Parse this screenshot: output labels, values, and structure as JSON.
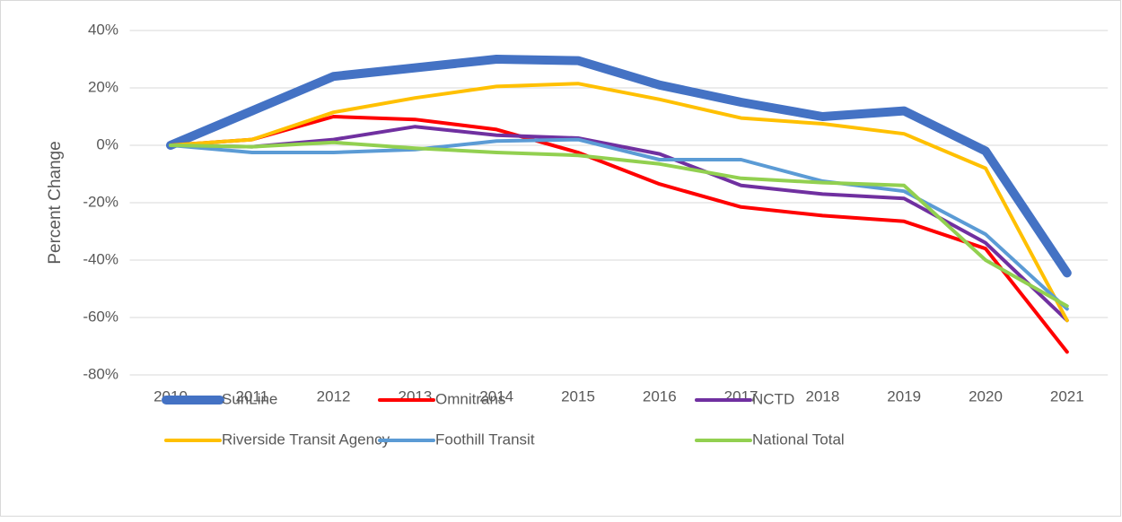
{
  "chart_data": {
    "type": "line",
    "y_label": "Percent Change",
    "categories": [
      "2010",
      "2011",
      "2012",
      "2013",
      "2014",
      "2015",
      "2016",
      "2017",
      "2018",
      "2019",
      "2020",
      "2021"
    ],
    "series": [
      {
        "name": "SunLine",
        "color": "#4472c4",
        "width": 10,
        "values": [
          0,
          12,
          24,
          27,
          30,
          29.5,
          21,
          15,
          10,
          12,
          -2,
          -44.5
        ]
      },
      {
        "name": "Omnitrans",
        "color": "#ff0000",
        "width": 4,
        "values": [
          0,
          2,
          10,
          9,
          5.5,
          -2.5,
          -13.5,
          -21.5,
          -24.5,
          -26.5,
          -36,
          -72
        ]
      },
      {
        "name": "NCTD",
        "color": "#7030a0",
        "width": 4,
        "values": [
          0,
          -0.5,
          2,
          6.5,
          3.5,
          2.5,
          -3,
          -14,
          -17,
          -18.5,
          -34,
          -61
        ]
      },
      {
        "name": "Riverside Transit Agency",
        "color": "#ffc000",
        "width": 4,
        "values": [
          0,
          2,
          11.5,
          16.5,
          20.5,
          21.5,
          16,
          9.5,
          7.5,
          4,
          -8,
          -61
        ]
      },
      {
        "name": "Foothill Transit",
        "color": "#5b9bd5",
        "width": 4,
        "values": [
          0,
          -2.5,
          -2.5,
          -1.5,
          1.5,
          2,
          -5,
          -5,
          -12.5,
          -16,
          -31,
          -57
        ]
      },
      {
        "name": "National Total",
        "color": "#92d050",
        "width": 4,
        "values": [
          0,
          -0.5,
          1,
          -1,
          -2.5,
          -3.5,
          -6.5,
          -11.5,
          -13,
          -14,
          -40,
          -56
        ]
      }
    ],
    "ylim": [
      -80,
      40
    ],
    "yticks": [
      {
        "value": -80,
        "label": "-80%"
      },
      {
        "value": -60,
        "label": "-60%"
      },
      {
        "value": -40,
        "label": "-40%"
      },
      {
        "value": -20,
        "label": "-20%"
      },
      {
        "value": 0,
        "label": "0%"
      },
      {
        "value": 20,
        "label": "20%"
      },
      {
        "value": 40,
        "label": "40%"
      }
    ],
    "grid": true,
    "legend": "bottom"
  }
}
